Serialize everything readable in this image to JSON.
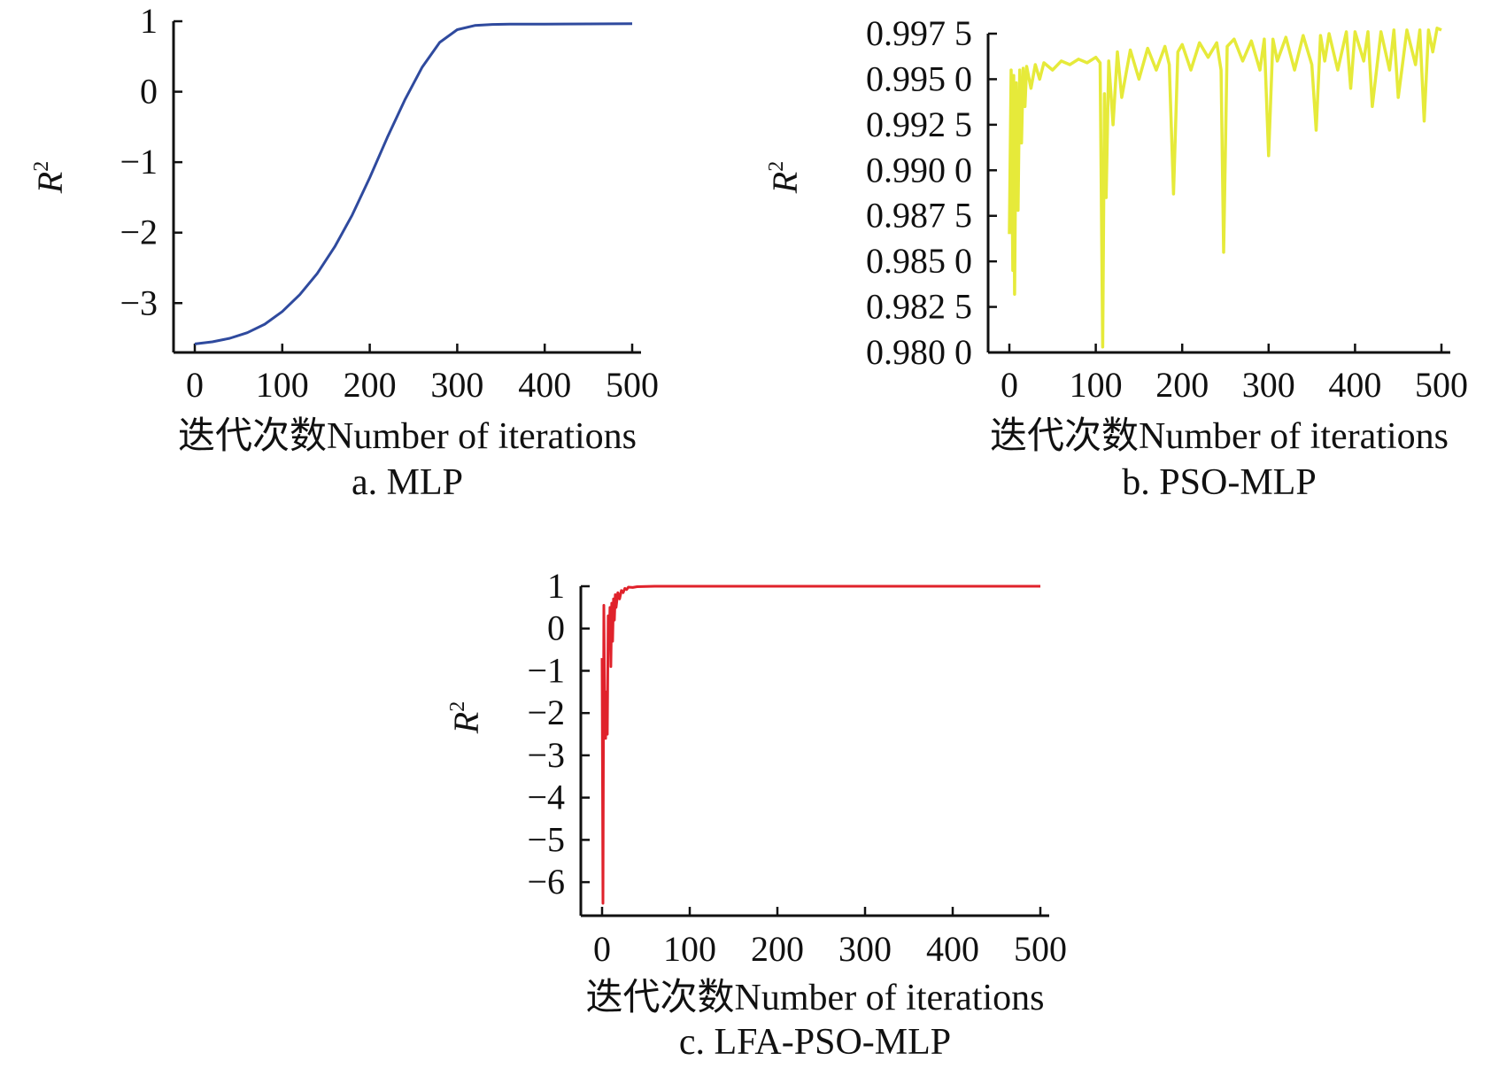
{
  "charts": [
    {
      "id": "a",
      "caption": "a. MLP",
      "color": "#2f4a9e",
      "chart_data": {
        "type": "line",
        "title": "",
        "xlabel": "迭代次数Number of iterations",
        "ylabel": "R",
        "ylabel_sup": "2",
        "xlim": [
          0,
          500
        ],
        "ylim": [
          -3.6,
          1.0
        ],
        "x_ticks": [
          0,
          100,
          200,
          300,
          400,
          500
        ],
        "x_tick_labels": [
          "0",
          "100",
          "200",
          "300",
          "400",
          "500"
        ],
        "y_ticks": [
          1,
          0,
          -1,
          -2,
          -3
        ],
        "y_tick_labels": [
          "1",
          "0",
          "−1",
          "−2",
          "−3"
        ],
        "grid": false,
        "legend": "none",
        "series": [
          {
            "x": [
              0,
              20,
              40,
              60,
              80,
              100,
              120,
              140,
              160,
              180,
              200,
              220,
              240,
              260,
              280,
              300,
              320,
              340,
              360,
              400,
              450,
              500
            ],
            "y": [
              -3.58,
              -3.55,
              -3.5,
              -3.42,
              -3.3,
              -3.12,
              -2.88,
              -2.58,
              -2.2,
              -1.75,
              -1.22,
              -0.65,
              -0.12,
              0.35,
              0.7,
              0.88,
              0.94,
              0.955,
              0.96,
              0.96,
              0.962,
              0.965
            ]
          }
        ]
      }
    },
    {
      "id": "b",
      "caption": "b. PSO-MLP",
      "color": "#e6ea3a",
      "chart_data": {
        "type": "line",
        "title": "",
        "xlabel": "迭代次数Number of iterations",
        "ylabel": "R",
        "ylabel_sup": "2",
        "xlim": [
          0,
          500
        ],
        "ylim": [
          0.98,
          0.9975
        ],
        "x_ticks": [
          0,
          100,
          200,
          300,
          400,
          500
        ],
        "x_tick_labels": [
          "0",
          "100",
          "200",
          "300",
          "400",
          "500"
        ],
        "y_ticks": [
          0.9975,
          0.995,
          0.9925,
          0.99,
          0.9875,
          0.985,
          0.9825,
          0.98
        ],
        "y_tick_labels": [
          "0.997 5",
          "0.995 0",
          "0.992 5",
          "0.990 0",
          "0.987 5",
          "0.985 0",
          "0.982 5",
          "0.980 0"
        ],
        "grid": false,
        "legend": "none",
        "series": [
          {
            "x": [
              0,
              2,
              4,
              5,
              6,
              8,
              10,
              12,
              14,
              16,
              18,
              20,
              25,
              30,
              35,
              40,
              50,
              60,
              70,
              80,
              90,
              100,
              105,
              108,
              110,
              112,
              115,
              120,
              125,
              130,
              140,
              150,
              160,
              170,
              180,
              185,
              190,
              195,
              200,
              210,
              220,
              230,
              240,
              245,
              248,
              252,
              260,
              270,
              280,
              290,
              295,
              300,
              305,
              310,
              320,
              330,
              340,
              350,
              355,
              360,
              365,
              370,
              380,
              390,
              395,
              400,
              410,
              415,
              420,
              430,
              440,
              445,
              450,
              460,
              470,
              475,
              480,
              485,
              490,
              495,
              500
            ],
            "y": [
              0.9865,
              0.9955,
              0.9845,
              0.9952,
              0.9832,
              0.9948,
              0.9878,
              0.9955,
              0.9915,
              0.9956,
              0.9935,
              0.9957,
              0.9945,
              0.9958,
              0.995,
              0.9959,
              0.9955,
              0.996,
              0.9958,
              0.9961,
              0.9959,
              0.9962,
              0.9959,
              0.9803,
              0.9942,
              0.9885,
              0.996,
              0.9925,
              0.9965,
              0.994,
              0.9966,
              0.995,
              0.9967,
              0.9955,
              0.9968,
              0.9958,
              0.9887,
              0.9965,
              0.9969,
              0.9955,
              0.997,
              0.9962,
              0.997,
              0.9955,
              0.9855,
              0.9968,
              0.9972,
              0.996,
              0.9971,
              0.9955,
              0.9972,
              0.9908,
              0.9972,
              0.996,
              0.9973,
              0.9955,
              0.9974,
              0.9958,
              0.9922,
              0.9974,
              0.996,
              0.9975,
              0.9955,
              0.9976,
              0.9945,
              0.9976,
              0.996,
              0.9976,
              0.9935,
              0.9976,
              0.9955,
              0.9977,
              0.994,
              0.9977,
              0.9958,
              0.9977,
              0.9927,
              0.9977,
              0.9965,
              0.9978,
              0.9977
            ]
          }
        ]
      }
    },
    {
      "id": "c",
      "caption": "c. LFA-PSO-MLP",
      "color": "#e0222b",
      "chart_data": {
        "type": "line",
        "title": "",
        "xlabel": "迭代次数Number of iterations",
        "ylabel": "R",
        "ylabel_sup": "2",
        "xlim": [
          0,
          500
        ],
        "ylim": [
          -6.5,
          1.0
        ],
        "x_ticks": [
          0,
          100,
          200,
          300,
          400,
          500
        ],
        "x_tick_labels": [
          "0",
          "100",
          "200",
          "300",
          "400",
          "500"
        ],
        "y_ticks": [
          1,
          0,
          -1,
          -2,
          -3,
          -4,
          -5,
          -6
        ],
        "y_tick_labels": [
          "1",
          "0",
          "−1",
          "−2",
          "−3",
          "−4",
          "−5",
          "−6"
        ],
        "grid": false,
        "legend": "none",
        "series": [
          {
            "x": [
              0,
              1,
              2,
              3,
              4,
              5,
              6,
              7,
              8,
              9,
              10,
              11,
              12,
              13,
              14,
              15,
              16,
              18,
              20,
              22,
              24,
              26,
              28,
              30,
              35,
              40,
              50,
              60,
              80,
              100,
              200,
              300,
              400,
              500
            ],
            "y": [
              -0.7,
              -6.5,
              0.55,
              -2.0,
              -2.6,
              -1.5,
              -2.5,
              0.3,
              -0.4,
              0.5,
              -0.9,
              0.6,
              -0.3,
              0.7,
              0.2,
              0.8,
              0.5,
              0.85,
              0.7,
              0.9,
              0.85,
              0.95,
              0.92,
              0.98,
              0.97,
              0.99,
              0.995,
              1.0,
              1.0,
              1.0,
              1.0,
              1.0,
              1.0,
              1.0
            ]
          }
        ]
      }
    }
  ]
}
